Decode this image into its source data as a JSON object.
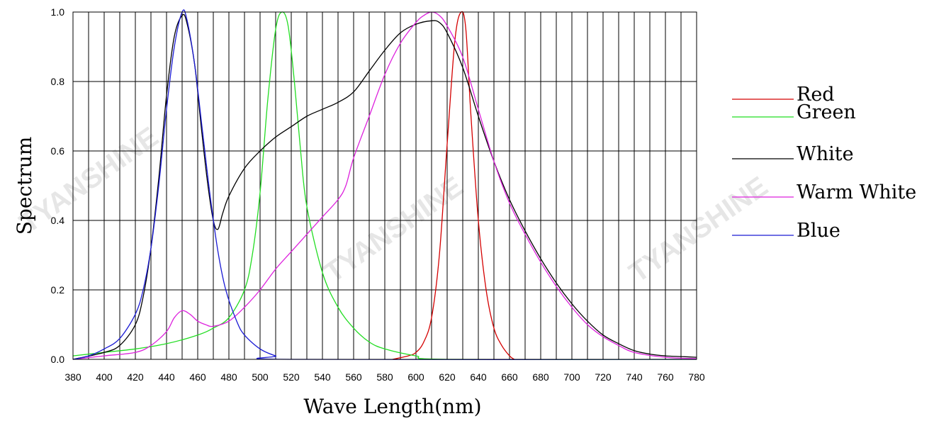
{
  "chart_data": {
    "type": "line",
    "title": "",
    "xlabel": "Wave Length(nm)",
    "ylabel": "Spectrum",
    "xlim": [
      380,
      780
    ],
    "ylim": [
      0,
      1
    ],
    "x_ticks": [
      380,
      400,
      420,
      440,
      460,
      480,
      500,
      520,
      540,
      560,
      580,
      600,
      620,
      640,
      660,
      680,
      700,
      720,
      740,
      760,
      780
    ],
    "y_ticks": [
      0.0,
      0.2,
      0.4,
      0.6,
      0.8,
      1.0
    ],
    "y_tick_labels": [
      "0.0",
      "0.2",
      "0.4",
      "0.6",
      "0.8",
      "1.0"
    ],
    "x_grid_step": 10,
    "grid": true,
    "legend_position": "right",
    "watermark": "TYANSHINE",
    "series": [
      {
        "name": "Red",
        "color": "#d40000",
        "points": [
          [
            585,
            0.0
          ],
          [
            595,
            0.01
          ],
          [
            600,
            0.02
          ],
          [
            605,
            0.05
          ],
          [
            610,
            0.12
          ],
          [
            615,
            0.3
          ],
          [
            620,
            0.62
          ],
          [
            625,
            0.92
          ],
          [
            629,
            1.0
          ],
          [
            632,
            0.95
          ],
          [
            635,
            0.72
          ],
          [
            640,
            0.4
          ],
          [
            645,
            0.2
          ],
          [
            650,
            0.09
          ],
          [
            655,
            0.04
          ],
          [
            660,
            0.01
          ],
          [
            663,
            0.0
          ]
        ]
      },
      {
        "name": "Green",
        "color": "#22dd22",
        "points": [
          [
            380,
            0.01
          ],
          [
            400,
            0.02
          ],
          [
            420,
            0.03
          ],
          [
            440,
            0.045
          ],
          [
            460,
            0.07
          ],
          [
            470,
            0.09
          ],
          [
            480,
            0.12
          ],
          [
            490,
            0.2
          ],
          [
            495,
            0.3
          ],
          [
            500,
            0.48
          ],
          [
            505,
            0.75
          ],
          [
            510,
            0.95
          ],
          [
            514,
            1.0
          ],
          [
            518,
            0.96
          ],
          [
            522,
            0.8
          ],
          [
            526,
            0.6
          ],
          [
            530,
            0.44
          ],
          [
            540,
            0.25
          ],
          [
            550,
            0.15
          ],
          [
            560,
            0.09
          ],
          [
            570,
            0.05
          ],
          [
            580,
            0.03
          ],
          [
            600,
            0.01
          ],
          [
            620,
            0.0
          ],
          [
            780,
            0.0
          ]
        ]
      },
      {
        "name": "White",
        "color": "#000000",
        "points": [
          [
            380,
            0.0
          ],
          [
            400,
            0.02
          ],
          [
            410,
            0.04
          ],
          [
            420,
            0.1
          ],
          [
            425,
            0.18
          ],
          [
            430,
            0.32
          ],
          [
            435,
            0.52
          ],
          [
            440,
            0.76
          ],
          [
            445,
            0.93
          ],
          [
            450,
            0.99
          ],
          [
            453,
            0.97
          ],
          [
            458,
            0.85
          ],
          [
            462,
            0.68
          ],
          [
            466,
            0.52
          ],
          [
            470,
            0.4
          ],
          [
            473,
            0.375
          ],
          [
            476,
            0.42
          ],
          [
            480,
            0.47
          ],
          [
            490,
            0.55
          ],
          [
            500,
            0.6
          ],
          [
            510,
            0.64
          ],
          [
            520,
            0.67
          ],
          [
            530,
            0.7
          ],
          [
            540,
            0.72
          ],
          [
            550,
            0.74
          ],
          [
            560,
            0.77
          ],
          [
            570,
            0.83
          ],
          [
            580,
            0.89
          ],
          [
            590,
            0.94
          ],
          [
            600,
            0.965
          ],
          [
            610,
            0.975
          ],
          [
            615,
            0.97
          ],
          [
            620,
            0.94
          ],
          [
            630,
            0.84
          ],
          [
            640,
            0.7
          ],
          [
            650,
            0.57
          ],
          [
            660,
            0.46
          ],
          [
            670,
            0.37
          ],
          [
            680,
            0.29
          ],
          [
            690,
            0.22
          ],
          [
            700,
            0.16
          ],
          [
            710,
            0.11
          ],
          [
            720,
            0.07
          ],
          [
            730,
            0.045
          ],
          [
            740,
            0.025
          ],
          [
            750,
            0.015
          ],
          [
            760,
            0.01
          ],
          [
            770,
            0.008
          ],
          [
            780,
            0.006
          ]
        ]
      },
      {
        "name": "Warm White",
        "color": "#dd22dd",
        "points": [
          [
            380,
            0.0
          ],
          [
            400,
            0.01
          ],
          [
            420,
            0.02
          ],
          [
            430,
            0.04
          ],
          [
            440,
            0.08
          ],
          [
            445,
            0.12
          ],
          [
            450,
            0.14
          ],
          [
            455,
            0.13
          ],
          [
            460,
            0.11
          ],
          [
            465,
            0.1
          ],
          [
            470,
            0.095
          ],
          [
            480,
            0.11
          ],
          [
            490,
            0.15
          ],
          [
            500,
            0.2
          ],
          [
            510,
            0.26
          ],
          [
            520,
            0.31
          ],
          [
            530,
            0.36
          ],
          [
            540,
            0.41
          ],
          [
            550,
            0.46
          ],
          [
            555,
            0.5
          ],
          [
            560,
            0.58
          ],
          [
            570,
            0.7
          ],
          [
            580,
            0.82
          ],
          [
            590,
            0.91
          ],
          [
            600,
            0.97
          ],
          [
            605,
            0.99
          ],
          [
            610,
            1.0
          ],
          [
            615,
            0.99
          ],
          [
            620,
            0.96
          ],
          [
            630,
            0.87
          ],
          [
            640,
            0.72
          ],
          [
            650,
            0.57
          ],
          [
            660,
            0.45
          ],
          [
            670,
            0.36
          ],
          [
            680,
            0.28
          ],
          [
            690,
            0.21
          ],
          [
            700,
            0.15
          ],
          [
            710,
            0.1
          ],
          [
            720,
            0.065
          ],
          [
            730,
            0.04
          ],
          [
            740,
            0.02
          ],
          [
            760,
            0.006
          ],
          [
            780,
            0.002
          ]
        ]
      },
      {
        "name": "Blue",
        "color": "#1a1ad4",
        "points": [
          [
            380,
            0.0
          ],
          [
            390,
            0.01
          ],
          [
            400,
            0.03
          ],
          [
            410,
            0.06
          ],
          [
            420,
            0.13
          ],
          [
            425,
            0.2
          ],
          [
            430,
            0.32
          ],
          [
            435,
            0.5
          ],
          [
            440,
            0.72
          ],
          [
            445,
            0.9
          ],
          [
            450,
            1.0
          ],
          [
            453,
            0.98
          ],
          [
            458,
            0.85
          ],
          [
            463,
            0.66
          ],
          [
            468,
            0.47
          ],
          [
            473,
            0.31
          ],
          [
            478,
            0.2
          ],
          [
            485,
            0.11
          ],
          [
            490,
            0.07
          ],
          [
            500,
            0.03
          ],
          [
            510,
            0.01
          ],
          [
            520,
            0.0
          ],
          [
            780,
            0.0
          ]
        ]
      }
    ]
  }
}
